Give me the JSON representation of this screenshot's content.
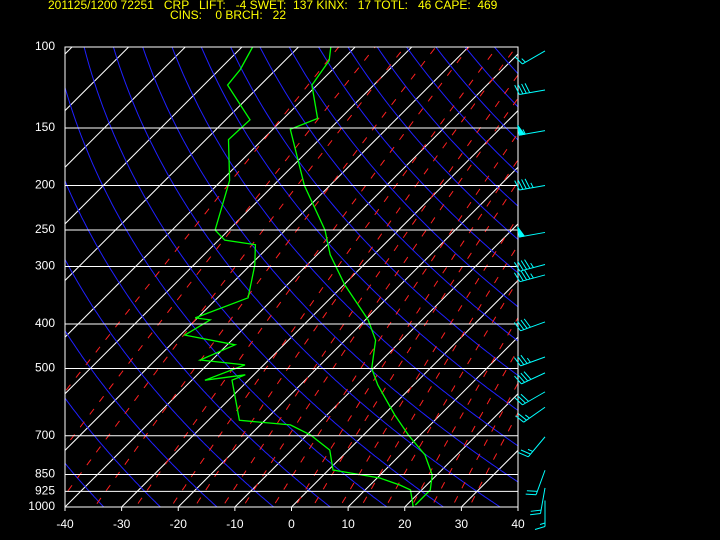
{
  "chart_data": {
    "type": "skewt",
    "title": "201125/1200 72251   CRP   LIFT:   -4 SWET:  137 KINX:   17 TOTL:   46 CAPE:  469",
    "subtitle": "CINS:    0 BRCH:   22",
    "xlim": [
      -40,
      40
    ],
    "xticks": [
      -40,
      -30,
      -20,
      -10,
      0,
      10,
      20,
      30,
      40
    ],
    "ylim": [
      1000,
      100
    ],
    "yticks": [
      100,
      150,
      200,
      250,
      300,
      400,
      500,
      700,
      850,
      925,
      1000
    ],
    "log_y": true,
    "grid": true,
    "series": [
      {
        "color": "#00ff00",
        "pressure": [
          990,
          918,
          852,
          771,
          697,
          631,
          543,
          500,
          434,
          392,
          329,
          283,
          250,
          200,
          151,
          143,
          121,
          107,
          100
        ],
        "values": [
          21.5,
          21.5,
          19.2,
          14.4,
          7.9,
          2.0,
          -6.3,
          -10.3,
          -14.6,
          -19.5,
          -29.8,
          -37.7,
          -43,
          -54.5,
          -66.9,
          -64,
          -70.9,
          -72.2,
          -74.3
        ]
      },
      {
        "color": "#00ff00",
        "pressure": [
          1000,
          918,
          896,
          865,
          831,
          752,
          697,
          663,
          648,
          530,
          516,
          530,
          491,
          479,
          444,
          423,
          392,
          388,
          351,
          298,
          269,
          263,
          250,
          195,
          159,
          144,
          121,
          112,
          100
        ],
        "values": [
          21.5,
          18,
          15.3,
          10.5,
          0.8,
          -3.3,
          -9.4,
          -14.7,
          -24.5,
          -32.9,
          -31.5,
          -37.7,
          -33.3,
          -42.1,
          -38.6,
          -49.2,
          -47.4,
          -50.4,
          -44.6,
          -49.2,
          -52.7,
          -58.9,
          -62.4,
          -68.6,
          -76,
          -75.7,
          -85.8,
          -86.3,
          -88.1
        ]
      }
    ],
    "winds": {
      "color": "#00ffff",
      "pressure": [
        102,
        124,
        152,
        200,
        253,
        297,
        313,
        396,
        472,
        511,
        562,
        607,
        704,
        832,
        909,
        968
      ],
      "speed": [
        15,
        40,
        55,
        45,
        50,
        45,
        45,
        40,
        35,
        40,
        30,
        25,
        25,
        20,
        20,
        15
      ],
      "direction": [
        240,
        260,
        260,
        260,
        260,
        255,
        255,
        250,
        250,
        245,
        240,
        235,
        220,
        200,
        190,
        180
      ]
    }
  }
}
